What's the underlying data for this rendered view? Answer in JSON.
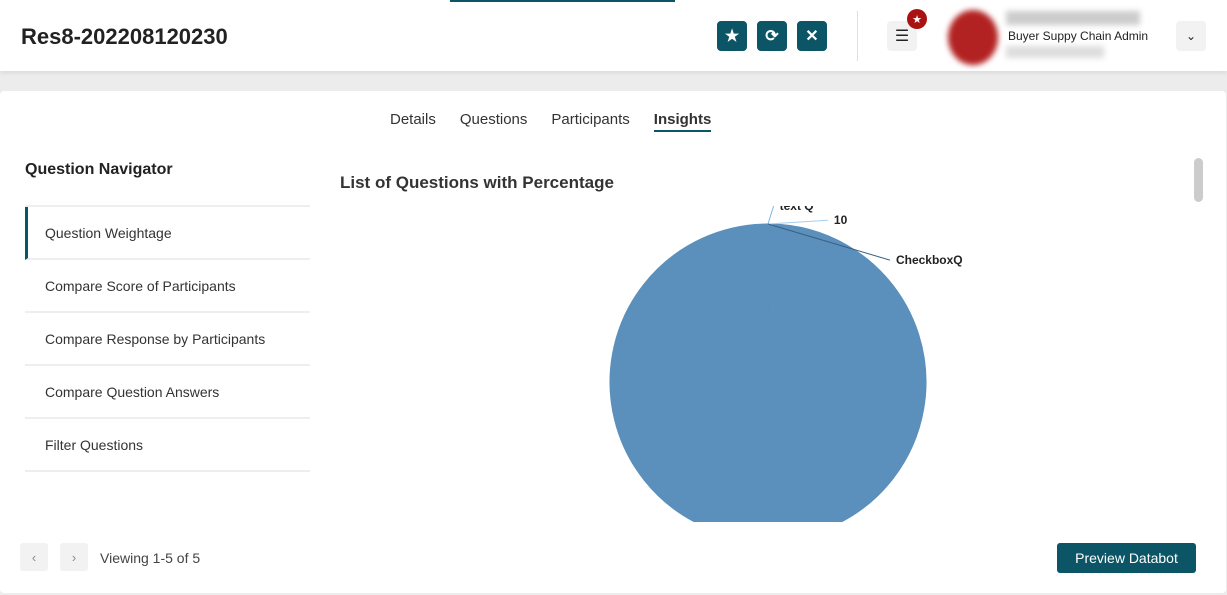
{
  "header": {
    "title": "Res8-202208120230",
    "role": "Buyer Suppy Chain Admin",
    "icons": [
      "star-icon",
      "refresh-icon",
      "close-icon",
      "menu-icon",
      "chevron-down-icon"
    ]
  },
  "tabs": [
    {
      "label": "Details"
    },
    {
      "label": "Questions"
    },
    {
      "label": "Participants"
    },
    {
      "label": "Insights",
      "active": true
    }
  ],
  "navigator": {
    "title": "Question Navigator",
    "items": [
      "Question Weightage",
      "Compare Score of Participants",
      "Compare Response by Participants",
      "Compare Question Answers",
      "Filter Questions"
    ]
  },
  "chart_data": {
    "type": "pie",
    "title": "List of Questions with Percentage",
    "slices": [
      {
        "label": "text Q",
        "value": 0.3
      },
      {
        "label": "10",
        "value": 8
      },
      {
        "label": "CheckboxQ",
        "value": 5
      },
      {
        "label": "",
        "value": 86.7
      }
    ],
    "color": "#5b8fbc"
  },
  "footer": {
    "viewing": "Viewing 1-5 of 5",
    "preview": "Preview Databot"
  },
  "colors": {
    "accent": "#0b5566",
    "badge": "#aa1111"
  }
}
